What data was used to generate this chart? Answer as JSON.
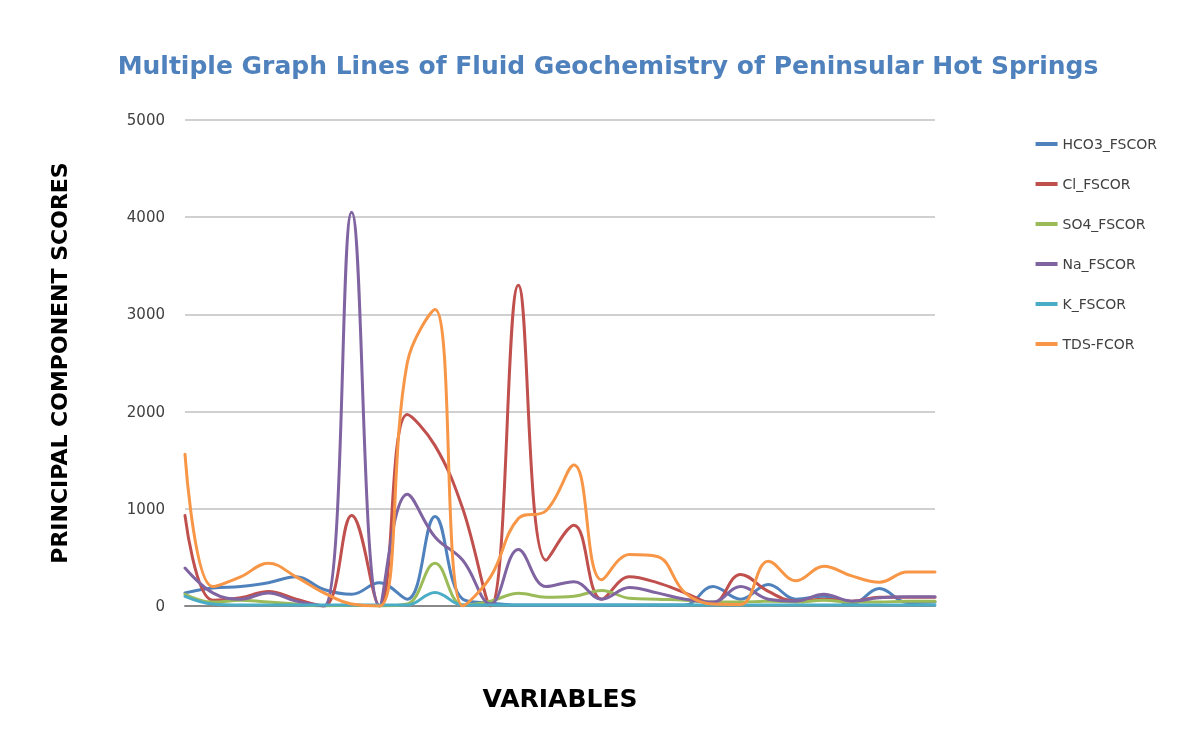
{
  "chart_data": {
    "type": "line",
    "title": "Multiple Graph Lines of Fluid Geochemistry of Peninsular Hot Springs",
    "xlabel": "VARIABLES",
    "ylabel": "PRINCIPAL COMPONENT SCORES",
    "categories": [
      null,
      null,
      null,
      null,
      null,
      null,
      null,
      null,
      null,
      null,
      null,
      null,
      null,
      null,
      null,
      null,
      null,
      null,
      null,
      null,
      null,
      null,
      null,
      null,
      null,
      null,
      null,
      null
    ],
    "series": [
      {
        "name": "HCO3_FSCOR",
        "color": "#4f81bd",
        "values": [
          135,
          185,
          200,
          240,
          300,
          170,
          120,
          240,
          70,
          920,
          70,
          30,
          10,
          10,
          10,
          10,
          10,
          10,
          10,
          200,
          70,
          220,
          70,
          100,
          20,
          180,
          35,
          40
        ]
      },
      {
        "name": "Cl_FSCOR",
        "color": "#c0504d",
        "values": [
          930,
          60,
          85,
          150,
          70,
          0,
          930,
          0,
          1970,
          1650,
          1000,
          0,
          3300,
          470,
          830,
          70,
          300,
          240,
          135,
          30,
          325,
          150,
          50,
          70,
          50,
          90,
          90,
          90
        ]
      },
      {
        "name": "SO4_FSCOR",
        "color": "#9bbb59",
        "values": [
          120,
          40,
          60,
          40,
          20,
          0,
          10,
          0,
          20,
          440,
          10,
          50,
          130,
          90,
          100,
          160,
          80,
          70,
          60,
          40,
          40,
          50,
          40,
          60,
          40,
          40,
          50,
          50
        ]
      },
      {
        "name": "Na_FSCOR",
        "color": "#8064a2",
        "values": [
          390,
          135,
          70,
          135,
          50,
          0,
          4050,
          0,
          1150,
          710,
          470,
          20,
          580,
          200,
          250,
          70,
          190,
          135,
          70,
          40,
          200,
          70,
          50,
          120,
          50,
          85,
          95,
          95
        ]
      },
      {
        "name": "K_FSCOR",
        "color": "#4bacc6",
        "values": [
          100,
          20,
          10,
          10,
          10,
          10,
          10,
          10,
          10,
          140,
          10,
          10,
          10,
          10,
          10,
          10,
          10,
          10,
          10,
          10,
          10,
          10,
          10,
          10,
          10,
          10,
          10,
          10
        ]
      },
      {
        "name": "TDS-FCOR",
        "color": "#f79646",
        "values": [
          1560,
          200,
          300,
          440,
          300,
          135,
          20,
          0,
          2500,
          3050,
          0,
          300,
          900,
          980,
          1450,
          270,
          530,
          510,
          135,
          20,
          15,
          460,
          260,
          410,
          310,
          245,
          350,
          350
        ]
      }
    ],
    "ylim": [
      0,
      5000
    ],
    "yticks": [
      0,
      1000,
      2000,
      3000,
      4000,
      5000
    ],
    "grid": "y",
    "legend": "right",
    "marker": "none",
    "line_style": "solid"
  }
}
